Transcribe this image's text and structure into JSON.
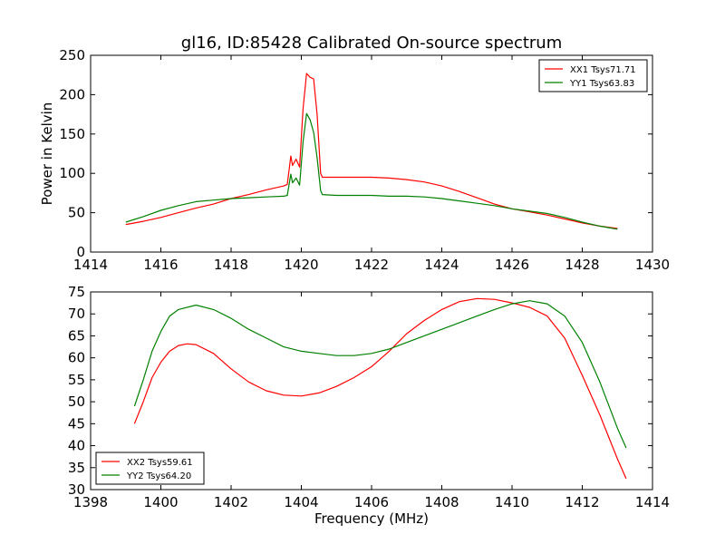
{
  "chart_data": [
    {
      "type": "line",
      "title": "gl16, ID:85428 Calibrated On-source spectrum",
      "xlabel": "",
      "ylabel": "Power in Kelvin",
      "xlim": [
        1414,
        1430
      ],
      "ylim": [
        0,
        250
      ],
      "xticks": [
        1414,
        1416,
        1418,
        1420,
        1422,
        1424,
        1426,
        1428,
        1430
      ],
      "yticks": [
        0,
        50,
        100,
        150,
        200,
        250
      ],
      "grid": false,
      "legend_position": "top-right",
      "series": [
        {
          "name": "XX1 Tsys71.71",
          "color": "#ff0000",
          "points": [
            [
              1415.0,
              35
            ],
            [
              1415.5,
              39
            ],
            [
              1416.0,
              44
            ],
            [
              1416.5,
              50
            ],
            [
              1417.0,
              56
            ],
            [
              1417.5,
              61
            ],
            [
              1418.0,
              68
            ],
            [
              1418.5,
              73
            ],
            [
              1419.0,
              79
            ],
            [
              1419.5,
              84
            ],
            [
              1419.6,
              86
            ],
            [
              1419.7,
              122
            ],
            [
              1419.75,
              110
            ],
            [
              1419.85,
              118
            ],
            [
              1419.95,
              108
            ],
            [
              1420.05,
              182
            ],
            [
              1420.15,
              227
            ],
            [
              1420.25,
              222
            ],
            [
              1420.35,
              220
            ],
            [
              1420.45,
              175
            ],
            [
              1420.55,
              100
            ],
            [
              1420.6,
              95
            ],
            [
              1421.0,
              95
            ],
            [
              1421.5,
              95
            ],
            [
              1422.0,
              95
            ],
            [
              1422.5,
              94
            ],
            [
              1423.0,
              92
            ],
            [
              1423.5,
              89
            ],
            [
              1424.0,
              84
            ],
            [
              1424.5,
              77
            ],
            [
              1425.0,
              69
            ],
            [
              1425.5,
              61
            ],
            [
              1426.0,
              55
            ],
            [
              1426.5,
              51
            ],
            [
              1427.0,
              47
            ],
            [
              1427.5,
              42
            ],
            [
              1428.0,
              37
            ],
            [
              1428.5,
              33
            ],
            [
              1429.0,
              30
            ]
          ]
        },
        {
          "name": "YY1 Tsys63.83",
          "color": "#008000",
          "points": [
            [
              1415.0,
              38
            ],
            [
              1415.5,
              45
            ],
            [
              1416.0,
              53
            ],
            [
              1416.5,
              59
            ],
            [
              1417.0,
              64
            ],
            [
              1417.5,
              66
            ],
            [
              1418.0,
              68
            ],
            [
              1418.5,
              69
            ],
            [
              1419.0,
              70
            ],
            [
              1419.5,
              71
            ],
            [
              1419.6,
              72
            ],
            [
              1419.7,
              99
            ],
            [
              1419.75,
              88
            ],
            [
              1419.85,
              94
            ],
            [
              1419.95,
              85
            ],
            [
              1420.05,
              140
            ],
            [
              1420.15,
              176
            ],
            [
              1420.25,
              168
            ],
            [
              1420.35,
              152
            ],
            [
              1420.45,
              120
            ],
            [
              1420.55,
              78
            ],
            [
              1420.6,
              73
            ],
            [
              1421.0,
              72
            ],
            [
              1421.5,
              72
            ],
            [
              1422.0,
              72
            ],
            [
              1422.5,
              71
            ],
            [
              1423.0,
              71
            ],
            [
              1423.5,
              70
            ],
            [
              1424.0,
              68
            ],
            [
              1424.5,
              65
            ],
            [
              1425.0,
              62
            ],
            [
              1425.5,
              59
            ],
            [
              1426.0,
              55
            ],
            [
              1426.5,
              52
            ],
            [
              1427.0,
              49
            ],
            [
              1427.5,
              44
            ],
            [
              1428.0,
              38
            ],
            [
              1428.5,
              33
            ],
            [
              1429.0,
              29
            ]
          ]
        }
      ]
    },
    {
      "type": "line",
      "title": "",
      "xlabel": "Frequency (MHz)",
      "ylabel": "",
      "xlim": [
        1398,
        1414
      ],
      "ylim": [
        30,
        75
      ],
      "xticks": [
        1398,
        1400,
        1402,
        1404,
        1406,
        1408,
        1410,
        1412,
        1414
      ],
      "yticks": [
        30,
        35,
        40,
        45,
        50,
        55,
        60,
        65,
        70,
        75
      ],
      "grid": false,
      "legend_position": "bottom-left",
      "series": [
        {
          "name": "XX2 Tsys59.61",
          "color": "#ff0000",
          "points": [
            [
              1399.25,
              45
            ],
            [
              1399.5,
              50
            ],
            [
              1399.75,
              55.5
            ],
            [
              1400.0,
              59
            ],
            [
              1400.25,
              61.5
            ],
            [
              1400.5,
              62.8
            ],
            [
              1400.75,
              63.2
            ],
            [
              1401.0,
              63
            ],
            [
              1401.5,
              61
            ],
            [
              1402.0,
              57.5
            ],
            [
              1402.5,
              54.5
            ],
            [
              1403.0,
              52.5
            ],
            [
              1403.5,
              51.5
            ],
            [
              1404.0,
              51.3
            ],
            [
              1404.5,
              52
            ],
            [
              1405.0,
              53.5
            ],
            [
              1405.5,
              55.5
            ],
            [
              1406.0,
              58
            ],
            [
              1406.5,
              61.5
            ],
            [
              1407.0,
              65.5
            ],
            [
              1407.5,
              68.5
            ],
            [
              1408.0,
              71
            ],
            [
              1408.5,
              72.8
            ],
            [
              1409.0,
              73.5
            ],
            [
              1409.5,
              73.3
            ],
            [
              1410.0,
              72.5
            ],
            [
              1410.5,
              71.5
            ],
            [
              1411.0,
              69.5
            ],
            [
              1411.5,
              64.5
            ],
            [
              1412.0,
              56
            ],
            [
              1412.5,
              47
            ],
            [
              1413.0,
              37
            ],
            [
              1413.25,
              32.5
            ]
          ]
        },
        {
          "name": "YY2 Tsys64.20",
          "color": "#008000",
          "points": [
            [
              1399.25,
              49
            ],
            [
              1399.5,
              55
            ],
            [
              1399.75,
              61.5
            ],
            [
              1400.0,
              66
            ],
            [
              1400.25,
              69.5
            ],
            [
              1400.5,
              71
            ],
            [
              1401.0,
              72
            ],
            [
              1401.5,
              71
            ],
            [
              1402.0,
              69
            ],
            [
              1402.5,
              66.5
            ],
            [
              1403.0,
              64.5
            ],
            [
              1403.5,
              62.5
            ],
            [
              1404.0,
              61.5
            ],
            [
              1404.5,
              61
            ],
            [
              1405.0,
              60.5
            ],
            [
              1405.5,
              60.5
            ],
            [
              1406.0,
              61
            ],
            [
              1406.5,
              62
            ],
            [
              1407.0,
              63.5
            ],
            [
              1407.5,
              65
            ],
            [
              1408.0,
              66.5
            ],
            [
              1408.5,
              68
            ],
            [
              1409.0,
              69.5
            ],
            [
              1409.5,
              71
            ],
            [
              1410.0,
              72.3
            ],
            [
              1410.5,
              73
            ],
            [
              1411.0,
              72.3
            ],
            [
              1411.5,
              69.5
            ],
            [
              1412.0,
              63.5
            ],
            [
              1412.5,
              54.5
            ],
            [
              1413.0,
              44
            ],
            [
              1413.25,
              39.5
            ]
          ]
        }
      ]
    }
  ]
}
